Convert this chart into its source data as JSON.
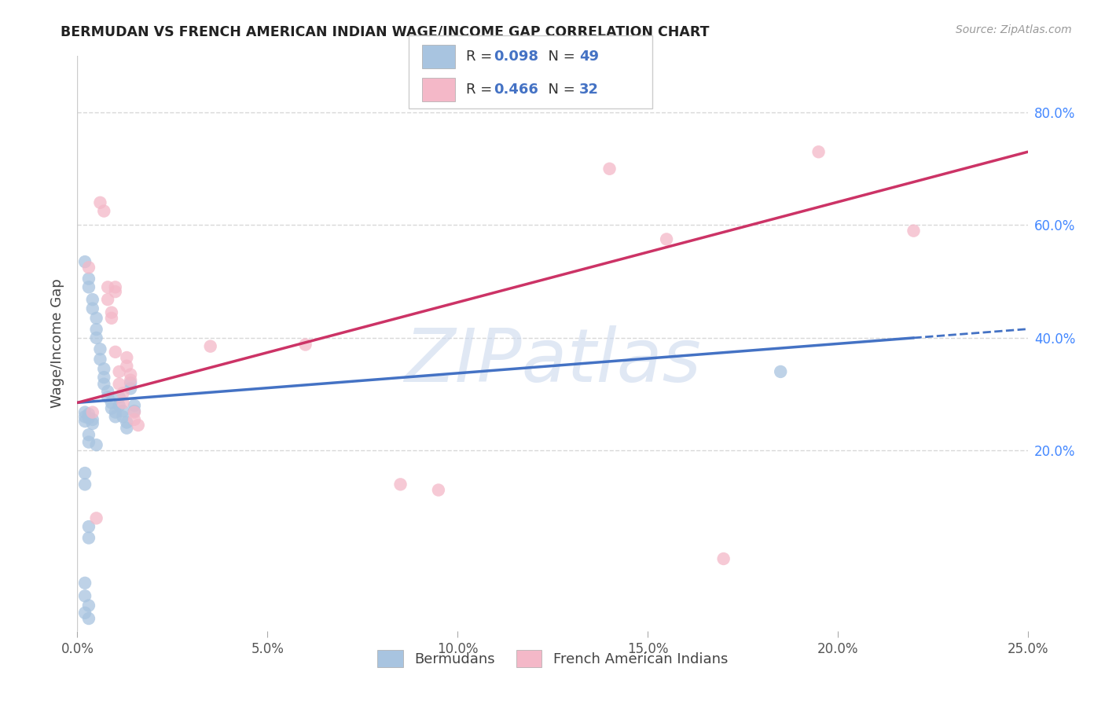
{
  "title": "BERMUDAN VS FRENCH AMERICAN INDIAN WAGE/INCOME GAP CORRELATION CHART",
  "source": "Source: ZipAtlas.com",
  "ylabel": "Wage/Income Gap",
  "xlim": [
    0.0,
    0.25
  ],
  "ylim": [
    -0.12,
    0.9
  ],
  "xticks": [
    0.0,
    0.05,
    0.1,
    0.15,
    0.2,
    0.25
  ],
  "yticks_right": [
    0.2,
    0.4,
    0.6,
    0.8
  ],
  "blue_R": 0.098,
  "blue_N": 49,
  "pink_R": 0.466,
  "pink_N": 32,
  "blue_color": "#a8c4e0",
  "pink_color": "#f4b8c8",
  "blue_trend_color": "#4472c4",
  "pink_trend_color": "#cc3366",
  "blue_scatter": [
    [
      0.002,
      0.535
    ],
    [
      0.003,
      0.505
    ],
    [
      0.003,
      0.49
    ],
    [
      0.004,
      0.468
    ],
    [
      0.004,
      0.452
    ],
    [
      0.005,
      0.435
    ],
    [
      0.005,
      0.415
    ],
    [
      0.005,
      0.4
    ],
    [
      0.006,
      0.38
    ],
    [
      0.006,
      0.362
    ],
    [
      0.007,
      0.345
    ],
    [
      0.007,
      0.33
    ],
    [
      0.007,
      0.318
    ],
    [
      0.008,
      0.305
    ],
    [
      0.008,
      0.295
    ],
    [
      0.009,
      0.285
    ],
    [
      0.009,
      0.275
    ],
    [
      0.01,
      0.268
    ],
    [
      0.01,
      0.26
    ],
    [
      0.011,
      0.295
    ],
    [
      0.011,
      0.28
    ],
    [
      0.012,
      0.27
    ],
    [
      0.012,
      0.26
    ],
    [
      0.013,
      0.25
    ],
    [
      0.013,
      0.24
    ],
    [
      0.014,
      0.32
    ],
    [
      0.014,
      0.31
    ],
    [
      0.015,
      0.28
    ],
    [
      0.015,
      0.27
    ],
    [
      0.002,
      0.268
    ],
    [
      0.002,
      0.26
    ],
    [
      0.002,
      0.252
    ],
    [
      0.003,
      0.265
    ],
    [
      0.003,
      0.258
    ],
    [
      0.004,
      0.255
    ],
    [
      0.004,
      0.248
    ],
    [
      0.003,
      0.228
    ],
    [
      0.003,
      0.215
    ],
    [
      0.005,
      0.21
    ],
    [
      0.002,
      0.16
    ],
    [
      0.002,
      0.14
    ],
    [
      0.003,
      0.065
    ],
    [
      0.003,
      0.045
    ],
    [
      0.002,
      -0.035
    ],
    [
      0.002,
      -0.058
    ],
    [
      0.003,
      -0.075
    ],
    [
      0.002,
      -0.088
    ],
    [
      0.003,
      -0.098
    ],
    [
      0.185,
      0.34
    ]
  ],
  "pink_scatter": [
    [
      0.003,
      0.525
    ],
    [
      0.006,
      0.64
    ],
    [
      0.007,
      0.625
    ],
    [
      0.008,
      0.49
    ],
    [
      0.008,
      0.468
    ],
    [
      0.009,
      0.445
    ],
    [
      0.009,
      0.435
    ],
    [
      0.01,
      0.49
    ],
    [
      0.01,
      0.482
    ],
    [
      0.01,
      0.375
    ],
    [
      0.011,
      0.34
    ],
    [
      0.011,
      0.318
    ],
    [
      0.012,
      0.302
    ],
    [
      0.012,
      0.285
    ],
    [
      0.013,
      0.365
    ],
    [
      0.013,
      0.35
    ],
    [
      0.014,
      0.335
    ],
    [
      0.014,
      0.325
    ],
    [
      0.015,
      0.268
    ],
    [
      0.015,
      0.255
    ],
    [
      0.016,
      0.245
    ],
    [
      0.004,
      0.268
    ],
    [
      0.035,
      0.385
    ],
    [
      0.06,
      0.388
    ],
    [
      0.085,
      0.14
    ],
    [
      0.095,
      0.13
    ],
    [
      0.14,
      0.7
    ],
    [
      0.155,
      0.575
    ],
    [
      0.17,
      0.008
    ],
    [
      0.195,
      0.73
    ],
    [
      0.22,
      0.59
    ],
    [
      0.005,
      0.08
    ]
  ],
  "background_color": "#ffffff",
  "grid_color": "#d8d8d8",
  "watermark_text": "ZIPatlas",
  "legend_labels": [
    "Bermudans",
    "French American Indians"
  ]
}
